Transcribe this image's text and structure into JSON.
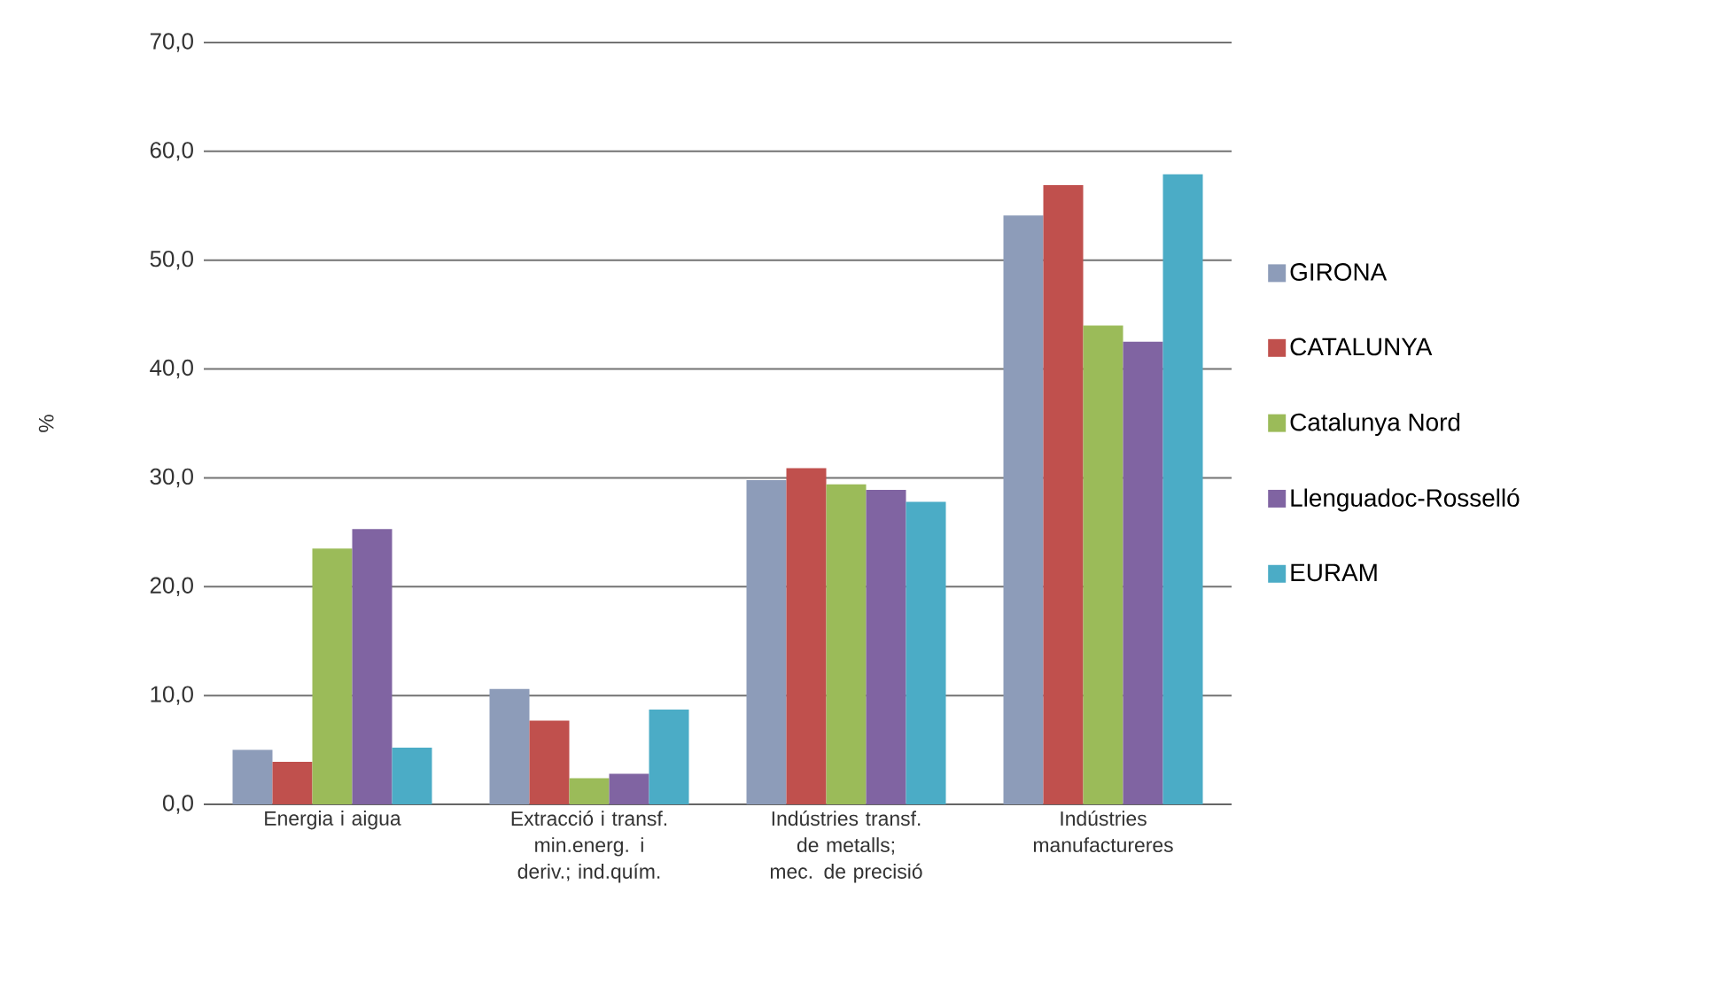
{
  "chart_data": {
    "type": "bar",
    "ylabel": "%",
    "categories": [
      "Energia i aigua",
      "Extracció i transf. min.energ. i deriv.; ind.quím.",
      "Indústries transf. de metalls; mec. de precisió",
      "Indústries manufactureres"
    ],
    "series": [
      {
        "name": "GIRONA",
        "color": "#8d9cb9",
        "values": [
          5.0,
          10.6,
          29.8,
          54.1
        ]
      },
      {
        "name": "CATALUNYA",
        "color": "#c0504d",
        "values": [
          3.9,
          7.7,
          30.9,
          56.9
        ]
      },
      {
        "name": "Catalunya Nord",
        "color": "#9bbb59",
        "values": [
          23.5,
          2.4,
          29.4,
          44.0
        ]
      },
      {
        "name": "Llenguadoc-Rosselló",
        "color": "#8064a2",
        "values": [
          25.3,
          2.8,
          28.9,
          42.5
        ]
      },
      {
        "name": "EURAM",
        "color": "#4bacc6",
        "values": [
          5.2,
          8.7,
          27.8,
          57.9
        ]
      }
    ],
    "ylim": [
      0,
      70
    ],
    "yticks": [
      {
        "value": 0,
        "label": "0,0"
      },
      {
        "value": 10,
        "label": "10,0"
      },
      {
        "value": 20,
        "label": "20,0"
      },
      {
        "value": 30,
        "label": "30,0"
      },
      {
        "value": 40,
        "label": "40,0"
      },
      {
        "value": 50,
        "label": "50,0"
      },
      {
        "value": 60,
        "label": "60,0"
      },
      {
        "value": 70,
        "label": "70,0"
      }
    ],
    "grid": "y",
    "legend": "right"
  }
}
